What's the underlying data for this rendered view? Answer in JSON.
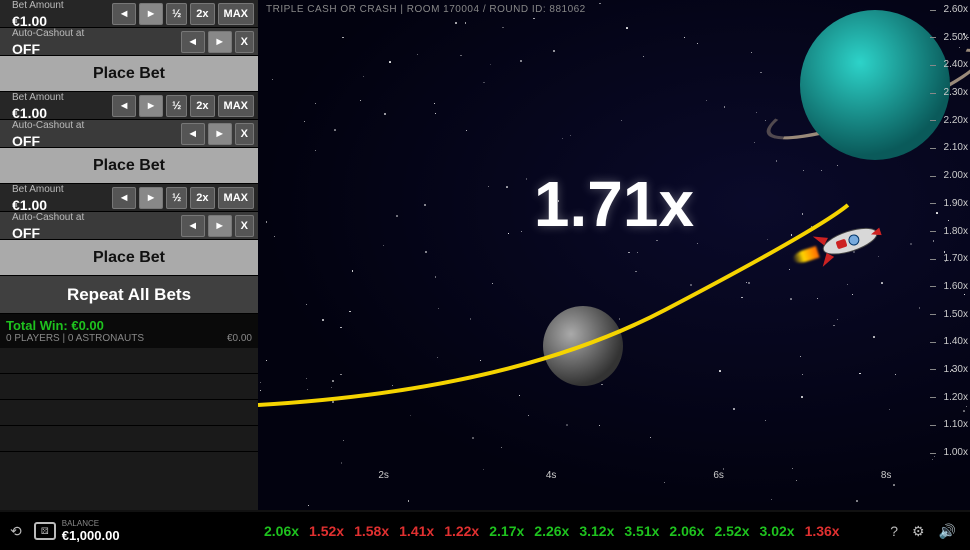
{
  "header": {
    "title": "TRIPLE CASH OR CRASH  |  ROOM 170004 / ROUND ID: 881062"
  },
  "bets": [
    {
      "amount_label": "Bet Amount",
      "amount": "€1.00",
      "cashout_label": "Auto-Cashout at",
      "cashout": "OFF",
      "half": "½",
      "two": "2x",
      "max": "MAX",
      "place": "Place Bet"
    },
    {
      "amount_label": "Bet Amount",
      "amount": "€1.00",
      "cashout_label": "Auto-Cashout at",
      "cashout": "OFF",
      "half": "½",
      "two": "2x",
      "max": "MAX",
      "place": "Place Bet"
    },
    {
      "amount_label": "Bet Amount",
      "amount": "€1.00",
      "cashout_label": "Auto-Cashout at",
      "cashout": "OFF",
      "half": "½",
      "two": "2x",
      "max": "MAX",
      "place": "Place Bet"
    }
  ],
  "repeat_label": "Repeat All Bets",
  "stats": {
    "total_win_label": "Total Win: €0.00",
    "players": "0 PLAYERS | 0 ASTRONAUTS",
    "amt": "€0.00"
  },
  "game": {
    "multiplier": "1.71x",
    "trail_color": "#f5d400",
    "trail_width": 4,
    "yaxis_ticks": [
      "2.60x",
      "2.50x",
      "2.40x",
      "2.30x",
      "2.20x",
      "2.10x",
      "2.00x",
      "1.90x",
      "1.80x",
      "1.70x",
      "1.60x",
      "1.50x",
      "1.40x",
      "1.30x",
      "1.20x",
      "1.10x",
      "1.00x"
    ],
    "xaxis_ticks": [
      "",
      "2s",
      "",
      "4s",
      "",
      "6s",
      "",
      "8s"
    ],
    "planet_color": "#2dd3c9",
    "moon_color": "#888888",
    "rocket_body": "#d8d8d8",
    "rocket_accent": "#c22"
  },
  "footer": {
    "balance_label": "BALANCE",
    "balance_value": "€1,000.00",
    "ticker": [
      {
        "v": "2.06x",
        "c": "g"
      },
      {
        "v": "1.52x",
        "c": "r"
      },
      {
        "v": "1.58x",
        "c": "r"
      },
      {
        "v": "1.41x",
        "c": "r"
      },
      {
        "v": "1.22x",
        "c": "r"
      },
      {
        "v": "2.17x",
        "c": "g"
      },
      {
        "v": "2.26x",
        "c": "g"
      },
      {
        "v": "3.12x",
        "c": "g"
      },
      {
        "v": "3.51x",
        "c": "g"
      },
      {
        "v": "2.06x",
        "c": "g"
      },
      {
        "v": "2.52x",
        "c": "g"
      },
      {
        "v": "3.02x",
        "c": "g"
      },
      {
        "v": "1.36x",
        "c": "r"
      }
    ]
  },
  "icons": {
    "history": "⟲",
    "help": "?",
    "settings": "⚙",
    "sound": "🔊",
    "dice": "⚄",
    "left": "◄",
    "right": "►",
    "x": "X"
  }
}
